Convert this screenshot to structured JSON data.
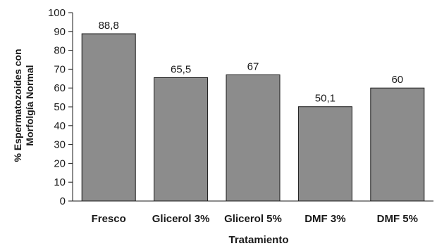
{
  "chart_data": {
    "type": "bar",
    "categories": [
      "Fresco",
      "Glicerol 3%",
      "Glicerol 5%",
      "DMF 3%",
      "DMF 5%"
    ],
    "values": [
      88.8,
      65.5,
      67,
      50.1,
      60
    ],
    "data_labels": [
      "88,8",
      "65,5",
      "67",
      "50,1",
      "60"
    ],
    "title": "",
    "xlabel": "Tratamiento",
    "ylabel_lines": [
      "% Espermatozoides con",
      "Morfolgía Normal"
    ],
    "ylim": [
      0,
      100
    ],
    "yticks": [
      0,
      10,
      20,
      30,
      40,
      50,
      60,
      70,
      80,
      90,
      100
    ],
    "grid": false,
    "bar_color": "#8c8c8c",
    "bar_edge_color": "#1a1a1a",
    "axis_color": "#1a1a1a"
  }
}
